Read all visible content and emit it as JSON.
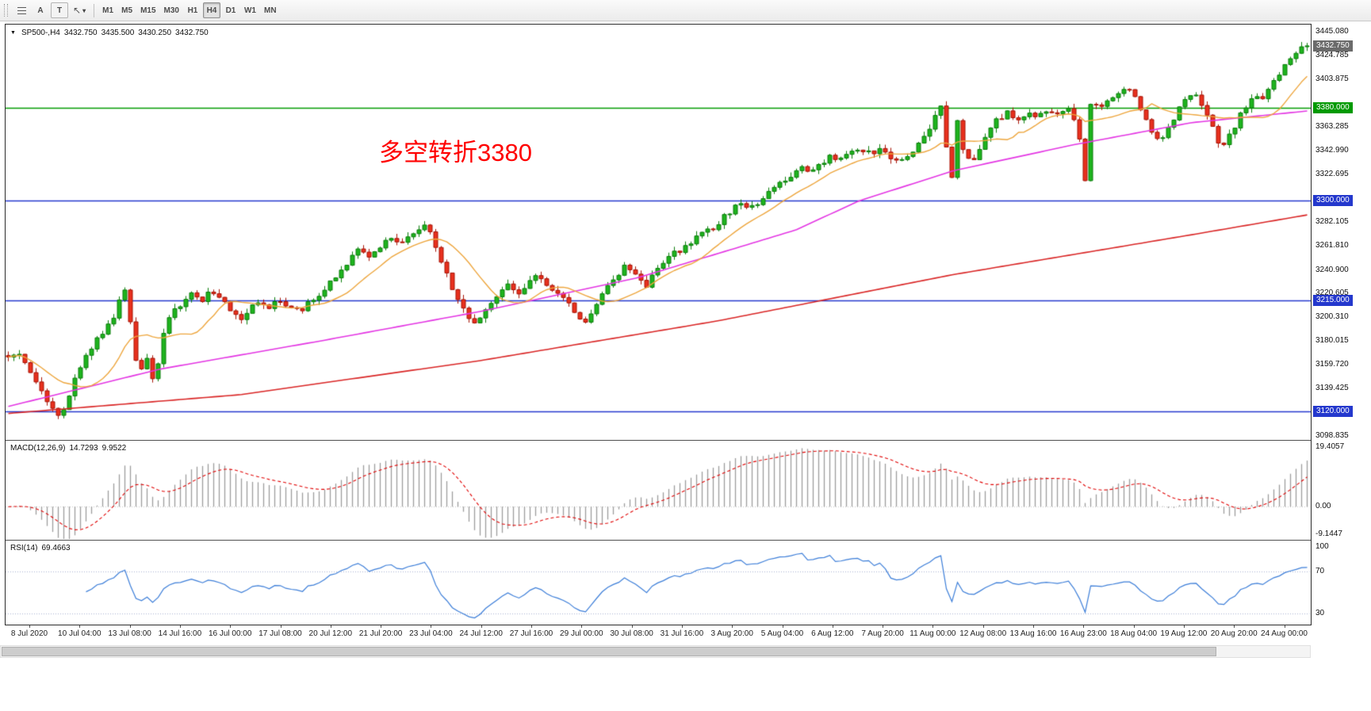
{
  "toolbar": {
    "text_tool_label": "A",
    "label_tool_label": "T",
    "timeframes": [
      "M1",
      "M5",
      "M15",
      "M30",
      "H1",
      "H4",
      "D1",
      "W1",
      "MN"
    ],
    "active_timeframe": "H4"
  },
  "chart": {
    "header": {
      "symbol_period": "SP500-,H4",
      "open": "3432.750",
      "high": "3435.500",
      "low": "3430.250",
      "close": "3432.750"
    },
    "annotation": {
      "text": "多空转折3380",
      "color": "#ff0000"
    },
    "colors": {
      "up": "#1eb41e",
      "up_border": "#0a7d0a",
      "down": "#e8301e",
      "down_border": "#a61205",
      "ma_fast": "#eda53c",
      "ma_mid": "#e335e3",
      "ma_slow": "#d92525",
      "hline_green": "#009a00",
      "hline_blue": "#2438cd",
      "bid_box": "#6b6b6b"
    },
    "y_axis": {
      "grid_labels": [
        {
          "price": 3445.08,
          "text": "3445.080"
        },
        {
          "price": 3424.785,
          "text": "3424.785"
        },
        {
          "price": 3403.875,
          "text": "3403.875"
        },
        {
          "price": 3363.285,
          "text": "3363.285"
        },
        {
          "price": 3342.99,
          "text": "3342.990"
        },
        {
          "price": 3322.695,
          "text": "3322.695"
        },
        {
          "price": 3282.105,
          "text": "3282.105"
        },
        {
          "price": 3261.81,
          "text": "3261.810"
        },
        {
          "price": 3240.9,
          "text": "3240.900"
        },
        {
          "price": 3220.605,
          "text": "3220.605"
        },
        {
          "price": 3200.31,
          "text": "3200.310"
        },
        {
          "price": 3180.015,
          "text": "3180.015"
        },
        {
          "price": 3159.72,
          "text": "3159.720"
        },
        {
          "price": 3139.425,
          "text": "3139.425"
        },
        {
          "price": 3098.835,
          "text": "3098.835"
        }
      ],
      "line_labels": [
        {
          "price": 3432.75,
          "text": "3432.750",
          "bg": "#6b6b6b"
        },
        {
          "price": 3380.0,
          "text": "3380.000",
          "bg": "#009a00"
        },
        {
          "price": 3300.0,
          "text": "3300.000",
          "bg": "#2438cd"
        },
        {
          "price": 3215.0,
          "text": "3215.000",
          "bg": "#2438cd"
        },
        {
          "price": 3120.0,
          "text": "3120.000",
          "bg": "#2438cd"
        }
      ]
    }
  },
  "macd_panel": {
    "title": "MACD(12,26,9)",
    "value_main": "14.7293",
    "value_signal": "9.9522",
    "scale_labels": [
      {
        "value": 19.4057,
        "text": "19.4057"
      },
      {
        "value": 0,
        "text": "0.00"
      },
      {
        "value": -9.1447,
        "text": "-9.1447"
      }
    ]
  },
  "rsi_panel": {
    "title": "RSI(14)",
    "value": "69.4663",
    "levels": [
      70,
      30
    ],
    "scale_labels": [
      {
        "value": 100,
        "text": "100"
      },
      {
        "value": 70,
        "text": "70"
      },
      {
        "value": 30,
        "text": "30"
      }
    ]
  },
  "time_axis": {
    "labels": [
      "8 Jul 2020",
      "10 Jul 04:00",
      "13 Jul 08:00",
      "14 Jul 16:00",
      "16 Jul 00:00",
      "17 Jul 08:00",
      "20 Jul 12:00",
      "21 Jul 20:00",
      "23 Jul 04:00",
      "24 Jul 12:00",
      "27 Jul 16:00",
      "29 Jul 00:00",
      "30 Jul 08:00",
      "31 Jul 16:00",
      "3 Aug 20:00",
      "5 Aug 04:00",
      "6 Aug 12:00",
      "7 Aug 20:00",
      "11 Aug 00:00",
      "12 Aug 08:00",
      "13 Aug 16:00",
      "16 Aug 23:00",
      "18 Aug 04:00",
      "19 Aug 12:00",
      "20 Aug 20:00",
      "24 Aug 00:00"
    ]
  },
  "chart_data": {
    "type": "candlestick",
    "symbol": "SP500-",
    "timeframe": "H4",
    "bar_count": 235,
    "ylim": [
      3096,
      3451
    ],
    "current": {
      "open": 3432.75,
      "high": 3435.5,
      "low": 3430.25,
      "close": 3432.75
    },
    "hlines": [
      {
        "price": 3380,
        "color": "#009a00",
        "width": 1.5
      },
      {
        "price": 3300,
        "color": "#2438cd",
        "width": 1.5
      },
      {
        "price": 3215,
        "color": "#2438cd",
        "width": 1.5
      },
      {
        "price": 3120,
        "color": "#2438cd",
        "width": 1.5
      }
    ],
    "close_path": [
      [
        0,
        3168
      ],
      [
        0.008,
        3172
      ],
      [
        0.015,
        3158
      ],
      [
        0.022,
        3145
      ],
      [
        0.03,
        3128
      ],
      [
        0.038,
        3115
      ],
      [
        0.045,
        3128
      ],
      [
        0.052,
        3148
      ],
      [
        0.06,
        3166
      ],
      [
        0.068,
        3180
      ],
      [
        0.075,
        3192
      ],
      [
        0.082,
        3200
      ],
      [
        0.088,
        3222
      ],
      [
        0.092,
        3228
      ],
      [
        0.096,
        3170
      ],
      [
        0.101,
        3152
      ],
      [
        0.106,
        3166
      ],
      [
        0.111,
        3150
      ],
      [
        0.116,
        3160
      ],
      [
        0.121,
        3198
      ],
      [
        0.126,
        3205
      ],
      [
        0.133,
        3212
      ],
      [
        0.141,
        3222
      ],
      [
        0.149,
        3215
      ],
      [
        0.156,
        3225
      ],
      [
        0.164,
        3215
      ],
      [
        0.171,
        3205
      ],
      [
        0.179,
        3196
      ],
      [
        0.186,
        3208
      ],
      [
        0.194,
        3215
      ],
      [
        0.201,
        3210
      ],
      [
        0.209,
        3216
      ],
      [
        0.216,
        3208
      ],
      [
        0.224,
        3205
      ],
      [
        0.231,
        3212
      ],
      [
        0.239,
        3218
      ],
      [
        0.246,
        3228
      ],
      [
        0.254,
        3238
      ],
      [
        0.262,
        3248
      ],
      [
        0.27,
        3258
      ],
      [
        0.278,
        3252
      ],
      [
        0.285,
        3260
      ],
      [
        0.293,
        3268
      ],
      [
        0.3,
        3262
      ],
      [
        0.308,
        3270
      ],
      [
        0.315,
        3277
      ],
      [
        0.32,
        3280
      ],
      [
        0.326,
        3270
      ],
      [
        0.332,
        3252
      ],
      [
        0.338,
        3235
      ],
      [
        0.345,
        3218
      ],
      [
        0.352,
        3205
      ],
      [
        0.358,
        3195
      ],
      [
        0.365,
        3203
      ],
      [
        0.372,
        3212
      ],
      [
        0.379,
        3220
      ],
      [
        0.386,
        3228
      ],
      [
        0.393,
        3222
      ],
      [
        0.4,
        3230
      ],
      [
        0.408,
        3235
      ],
      [
        0.415,
        3228
      ],
      [
        0.423,
        3220
      ],
      [
        0.43,
        3212
      ],
      [
        0.438,
        3203
      ],
      [
        0.445,
        3197
      ],
      [
        0.452,
        3210
      ],
      [
        0.46,
        3225
      ],
      [
        0.468,
        3235
      ],
      [
        0.475,
        3244
      ],
      [
        0.483,
        3237
      ],
      [
        0.49,
        3225
      ],
      [
        0.498,
        3238
      ],
      [
        0.505,
        3248
      ],
      [
        0.513,
        3255
      ],
      [
        0.52,
        3260
      ],
      [
        0.528,
        3267
      ],
      [
        0.535,
        3272
      ],
      [
        0.543,
        3278
      ],
      [
        0.55,
        3285
      ],
      [
        0.558,
        3293
      ],
      [
        0.565,
        3298
      ],
      [
        0.573,
        3294
      ],
      [
        0.58,
        3303
      ],
      [
        0.588,
        3310
      ],
      [
        0.595,
        3316
      ],
      [
        0.603,
        3322
      ],
      [
        0.61,
        3328
      ],
      [
        0.618,
        3324
      ],
      [
        0.625,
        3332
      ],
      [
        0.633,
        3338
      ],
      [
        0.64,
        3334
      ],
      [
        0.648,
        3342
      ],
      [
        0.655,
        3346
      ],
      [
        0.663,
        3340
      ],
      [
        0.671,
        3345
      ],
      [
        0.678,
        3337
      ],
      [
        0.686,
        3331
      ],
      [
        0.694,
        3340
      ],
      [
        0.701,
        3348
      ],
      [
        0.709,
        3360
      ],
      [
        0.714,
        3374
      ],
      [
        0.718,
        3380
      ],
      [
        0.723,
        3342
      ],
      [
        0.727,
        3318
      ],
      [
        0.731,
        3370
      ],
      [
        0.736,
        3340
      ],
      [
        0.741,
        3331
      ],
      [
        0.748,
        3345
      ],
      [
        0.755,
        3360
      ],
      [
        0.762,
        3370
      ],
      [
        0.77,
        3376
      ],
      [
        0.777,
        3370
      ],
      [
        0.785,
        3377
      ],
      [
        0.792,
        3372
      ],
      [
        0.799,
        3378
      ],
      [
        0.806,
        3372
      ],
      [
        0.813,
        3380
      ],
      [
        0.82,
        3374
      ],
      [
        0.825,
        3352
      ],
      [
        0.829,
        3318
      ],
      [
        0.833,
        3384
      ],
      [
        0.84,
        3378
      ],
      [
        0.847,
        3388
      ],
      [
        0.854,
        3393
      ],
      [
        0.861,
        3396
      ],
      [
        0.868,
        3388
      ],
      [
        0.875,
        3372
      ],
      [
        0.881,
        3358
      ],
      [
        0.887,
        3350
      ],
      [
        0.893,
        3362
      ],
      [
        0.899,
        3375
      ],
      [
        0.905,
        3385
      ],
      [
        0.911,
        3392
      ],
      [
        0.917,
        3386
      ],
      [
        0.923,
        3372
      ],
      [
        0.929,
        3358
      ],
      [
        0.934,
        3346
      ],
      [
        0.94,
        3355
      ],
      [
        0.946,
        3368
      ],
      [
        0.952,
        3380
      ],
      [
        0.958,
        3390
      ],
      [
        0.964,
        3385
      ],
      [
        0.97,
        3395
      ],
      [
        0.976,
        3405
      ],
      [
        0.982,
        3415
      ],
      [
        0.988,
        3424
      ],
      [
        0.994,
        3430
      ],
      [
        1,
        3432.75
      ]
    ],
    "ma_fast_period": 12,
    "ma_mid_path": [
      [
        0,
        3124
      ],
      [
        0.117,
        3156
      ],
      [
        0.24,
        3180
      ],
      [
        0.362,
        3205
      ],
      [
        0.484,
        3234
      ],
      [
        0.606,
        3275
      ],
      [
        0.655,
        3300
      ],
      [
        0.728,
        3326
      ],
      [
        0.82,
        3348
      ],
      [
        0.911,
        3367
      ],
      [
        1,
        3377
      ]
    ],
    "ma_slow_path": [
      [
        0,
        3118
      ],
      [
        0.178,
        3134
      ],
      [
        0.362,
        3163
      ],
      [
        0.545,
        3197
      ],
      [
        0.728,
        3237
      ],
      [
        0.911,
        3271
      ],
      [
        1,
        3288
      ]
    ],
    "indicators": [
      {
        "name": "MACD",
        "params": [
          12,
          26,
          9
        ],
        "values": [
          14.7293,
          9.9522
        ],
        "scale": [
          19.4057,
          0,
          -9.1447
        ]
      },
      {
        "name": "RSI",
        "params": [
          14
        ],
        "value": 69.4663,
        "levels": [
          70,
          30
        ]
      }
    ],
    "x_labels": [
      "8 Jul 2020",
      "10 Jul 04:00",
      "13 Jul 08:00",
      "14 Jul 16:00",
      "16 Jul 00:00",
      "17 Jul 08:00",
      "20 Jul 12:00",
      "21 Jul 20:00",
      "23 Jul 04:00",
      "24 Jul 12:00",
      "27 Jul 16:00",
      "29 Jul 00:00",
      "30 Jul 08:00",
      "31 Jul 16:00",
      "3 Aug 20:00",
      "5 Aug 04:00",
      "6 Aug 12:00",
      "7 Aug 20:00",
      "11 Aug 00:00",
      "12 Aug 08:00",
      "13 Aug 16:00",
      "16 Aug 23:00",
      "18 Aug 04:00",
      "19 Aug 12:00",
      "20 Aug 20:00",
      "24 Aug 00:00"
    ],
    "y_ticks": [
      3445.08,
      3424.785,
      3403.875,
      3380.0,
      3363.285,
      3342.99,
      3322.695,
      3300.0,
      3282.105,
      3261.81,
      3240.9,
      3220.605,
      3215.0,
      3200.31,
      3180.015,
      3159.72,
      3139.425,
      3120.0,
      3098.835
    ]
  }
}
